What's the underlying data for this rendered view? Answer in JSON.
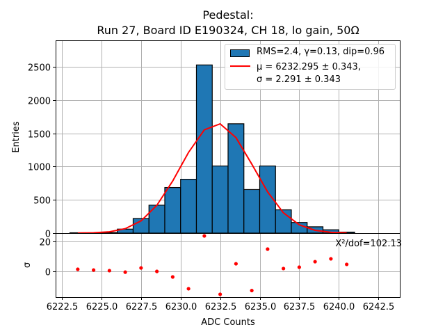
{
  "chart_data": [
    {
      "type": "bar",
      "panel": "histogram",
      "title": "Pedestal:",
      "subtitle": "Run 27, Board ID E190324, CH 18, lo gain, 50Ω",
      "xlabel": "",
      "ylabel": "Entries",
      "xlim": [
        6222.1,
        6243.9
      ],
      "ylim": [
        0,
        2900
      ],
      "grid": true,
      "yticks": [
        0,
        500,
        1000,
        1500,
        2000,
        2500
      ],
      "bin_width": 1,
      "bin_centers": [
        6223.5,
        6224.5,
        6225.5,
        6226.5,
        6227.5,
        6228.5,
        6229.5,
        6230.5,
        6231.5,
        6232.5,
        6233.5,
        6234.5,
        6235.5,
        6236.5,
        6237.5,
        6238.5,
        6239.5,
        6240.5
      ],
      "values": [
        5,
        3,
        8,
        60,
        220,
        420,
        685,
        810,
        2530,
        1010,
        1645,
        655,
        1010,
        350,
        160,
        95,
        50,
        15
      ],
      "bar_color": "#1f77b4",
      "fit": {
        "type": "gaussian",
        "mu": 6232.295,
        "sigma": 2.291,
        "amplitude": 1650,
        "color": "#ff0000"
      },
      "legend": {
        "placement": "top-right",
        "entries": [
          "RMS=2.4, γ=0.13, dip=0.96",
          "μ = 6232.295 ± 0.343,",
          "σ = 2.291 ± 0.343"
        ]
      }
    },
    {
      "type": "scatter",
      "panel": "residuals",
      "xlabel": "ADC Counts",
      "ylabel": "σ",
      "xlim": [
        6222.1,
        6243.9
      ],
      "ylim": [
        -17.2,
        25.6
      ],
      "grid": true,
      "yticks": [
        0,
        20
      ],
      "xticks": [
        6222.5,
        6225.0,
        6227.5,
        6230.0,
        6232.5,
        6235.0,
        6237.5,
        6240.0,
        6242.5
      ],
      "xticklabels": [
        "6222.5",
        "6225.0",
        "6227.5",
        "6230.0",
        "6232.5",
        "6235.0",
        "6237.5",
        "6240.0",
        "6242.5"
      ],
      "x": [
        6223.5,
        6224.5,
        6225.5,
        6226.5,
        6227.5,
        6228.5,
        6229.5,
        6230.5,
        6231.5,
        6232.5,
        6233.5,
        6234.5,
        6235.5,
        6236.5,
        6237.5,
        6238.5,
        6239.5,
        6240.5
      ],
      "y": [
        1.4,
        0.9,
        0.5,
        -0.5,
        2.3,
        0.0,
        -3.7,
        -11.6,
        23.7,
        -15.3,
        5.1,
        -12.8,
        14.9,
        1.9,
        2.8,
        6.5,
        8.4,
        4.7
      ],
      "point_color": "#ff0000",
      "annotation": "X²/dof=102.13"
    }
  ]
}
